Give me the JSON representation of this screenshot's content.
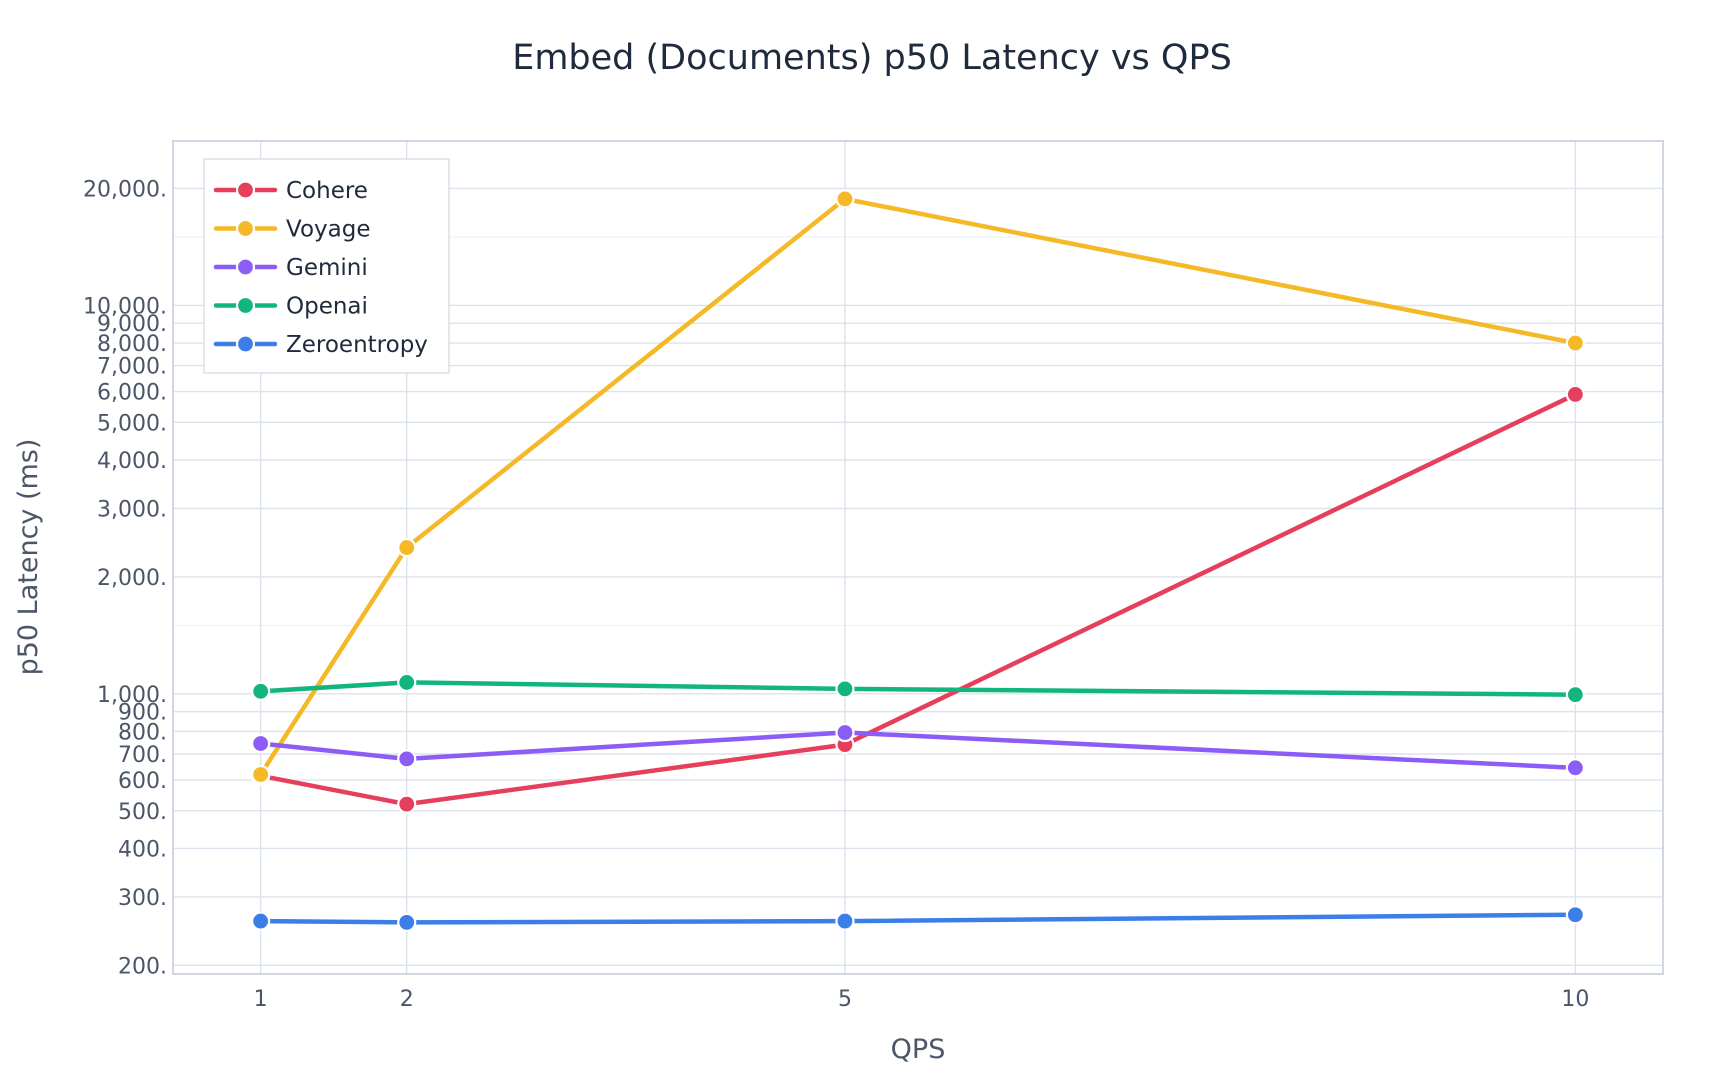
{
  "chart_data": {
    "type": "line",
    "title": "Embed (Documents) p50 Latency vs QPS",
    "xlabel": "QPS",
    "ylabel": "p50 Latency (ms)",
    "x": [
      1,
      2,
      5,
      10
    ],
    "x_ticks": [
      1,
      2,
      5,
      10
    ],
    "x_tick_labels": [
      "1",
      "2",
      "5",
      "10"
    ],
    "xlim": [
      0.4,
      10.6
    ],
    "y_scale": "log",
    "ylim": [
      190,
      26500
    ],
    "y_ticks": [
      200,
      300,
      400,
      500,
      600,
      700,
      800,
      900,
      1000,
      2000,
      3000,
      4000,
      5000,
      6000,
      7000,
      8000,
      9000,
      10000,
      20000
    ],
    "y_tick_labels": [
      "200.",
      "300.",
      "400.",
      "500.",
      "600.",
      "700.",
      "800.",
      "900.",
      "1,000.",
      "2,000.",
      "3,000.",
      "4,000.",
      "5,000.",
      "6,000.",
      "7,000.",
      "8,000.",
      "9,000.",
      "10,000.",
      "20,000."
    ],
    "grid": true,
    "legend_position": "top-left",
    "series": [
      {
        "name": "Cohere",
        "color": "#e63f5c",
        "values": [
          615,
          520,
          740,
          5900
        ]
      },
      {
        "name": "Voyage",
        "color": "#f5b927",
        "values": [
          620,
          2380,
          18800,
          8000
        ]
      },
      {
        "name": "Gemini",
        "color": "#8b5cf6",
        "values": [
          745,
          680,
          795,
          645
        ]
      },
      {
        "name": "Openai",
        "color": "#13b57f",
        "values": [
          1015,
          1070,
          1030,
          995
        ]
      },
      {
        "name": "Zeroentropy",
        "color": "#3b7ee8",
        "values": [
          260,
          258,
          260,
          270
        ]
      }
    ]
  }
}
